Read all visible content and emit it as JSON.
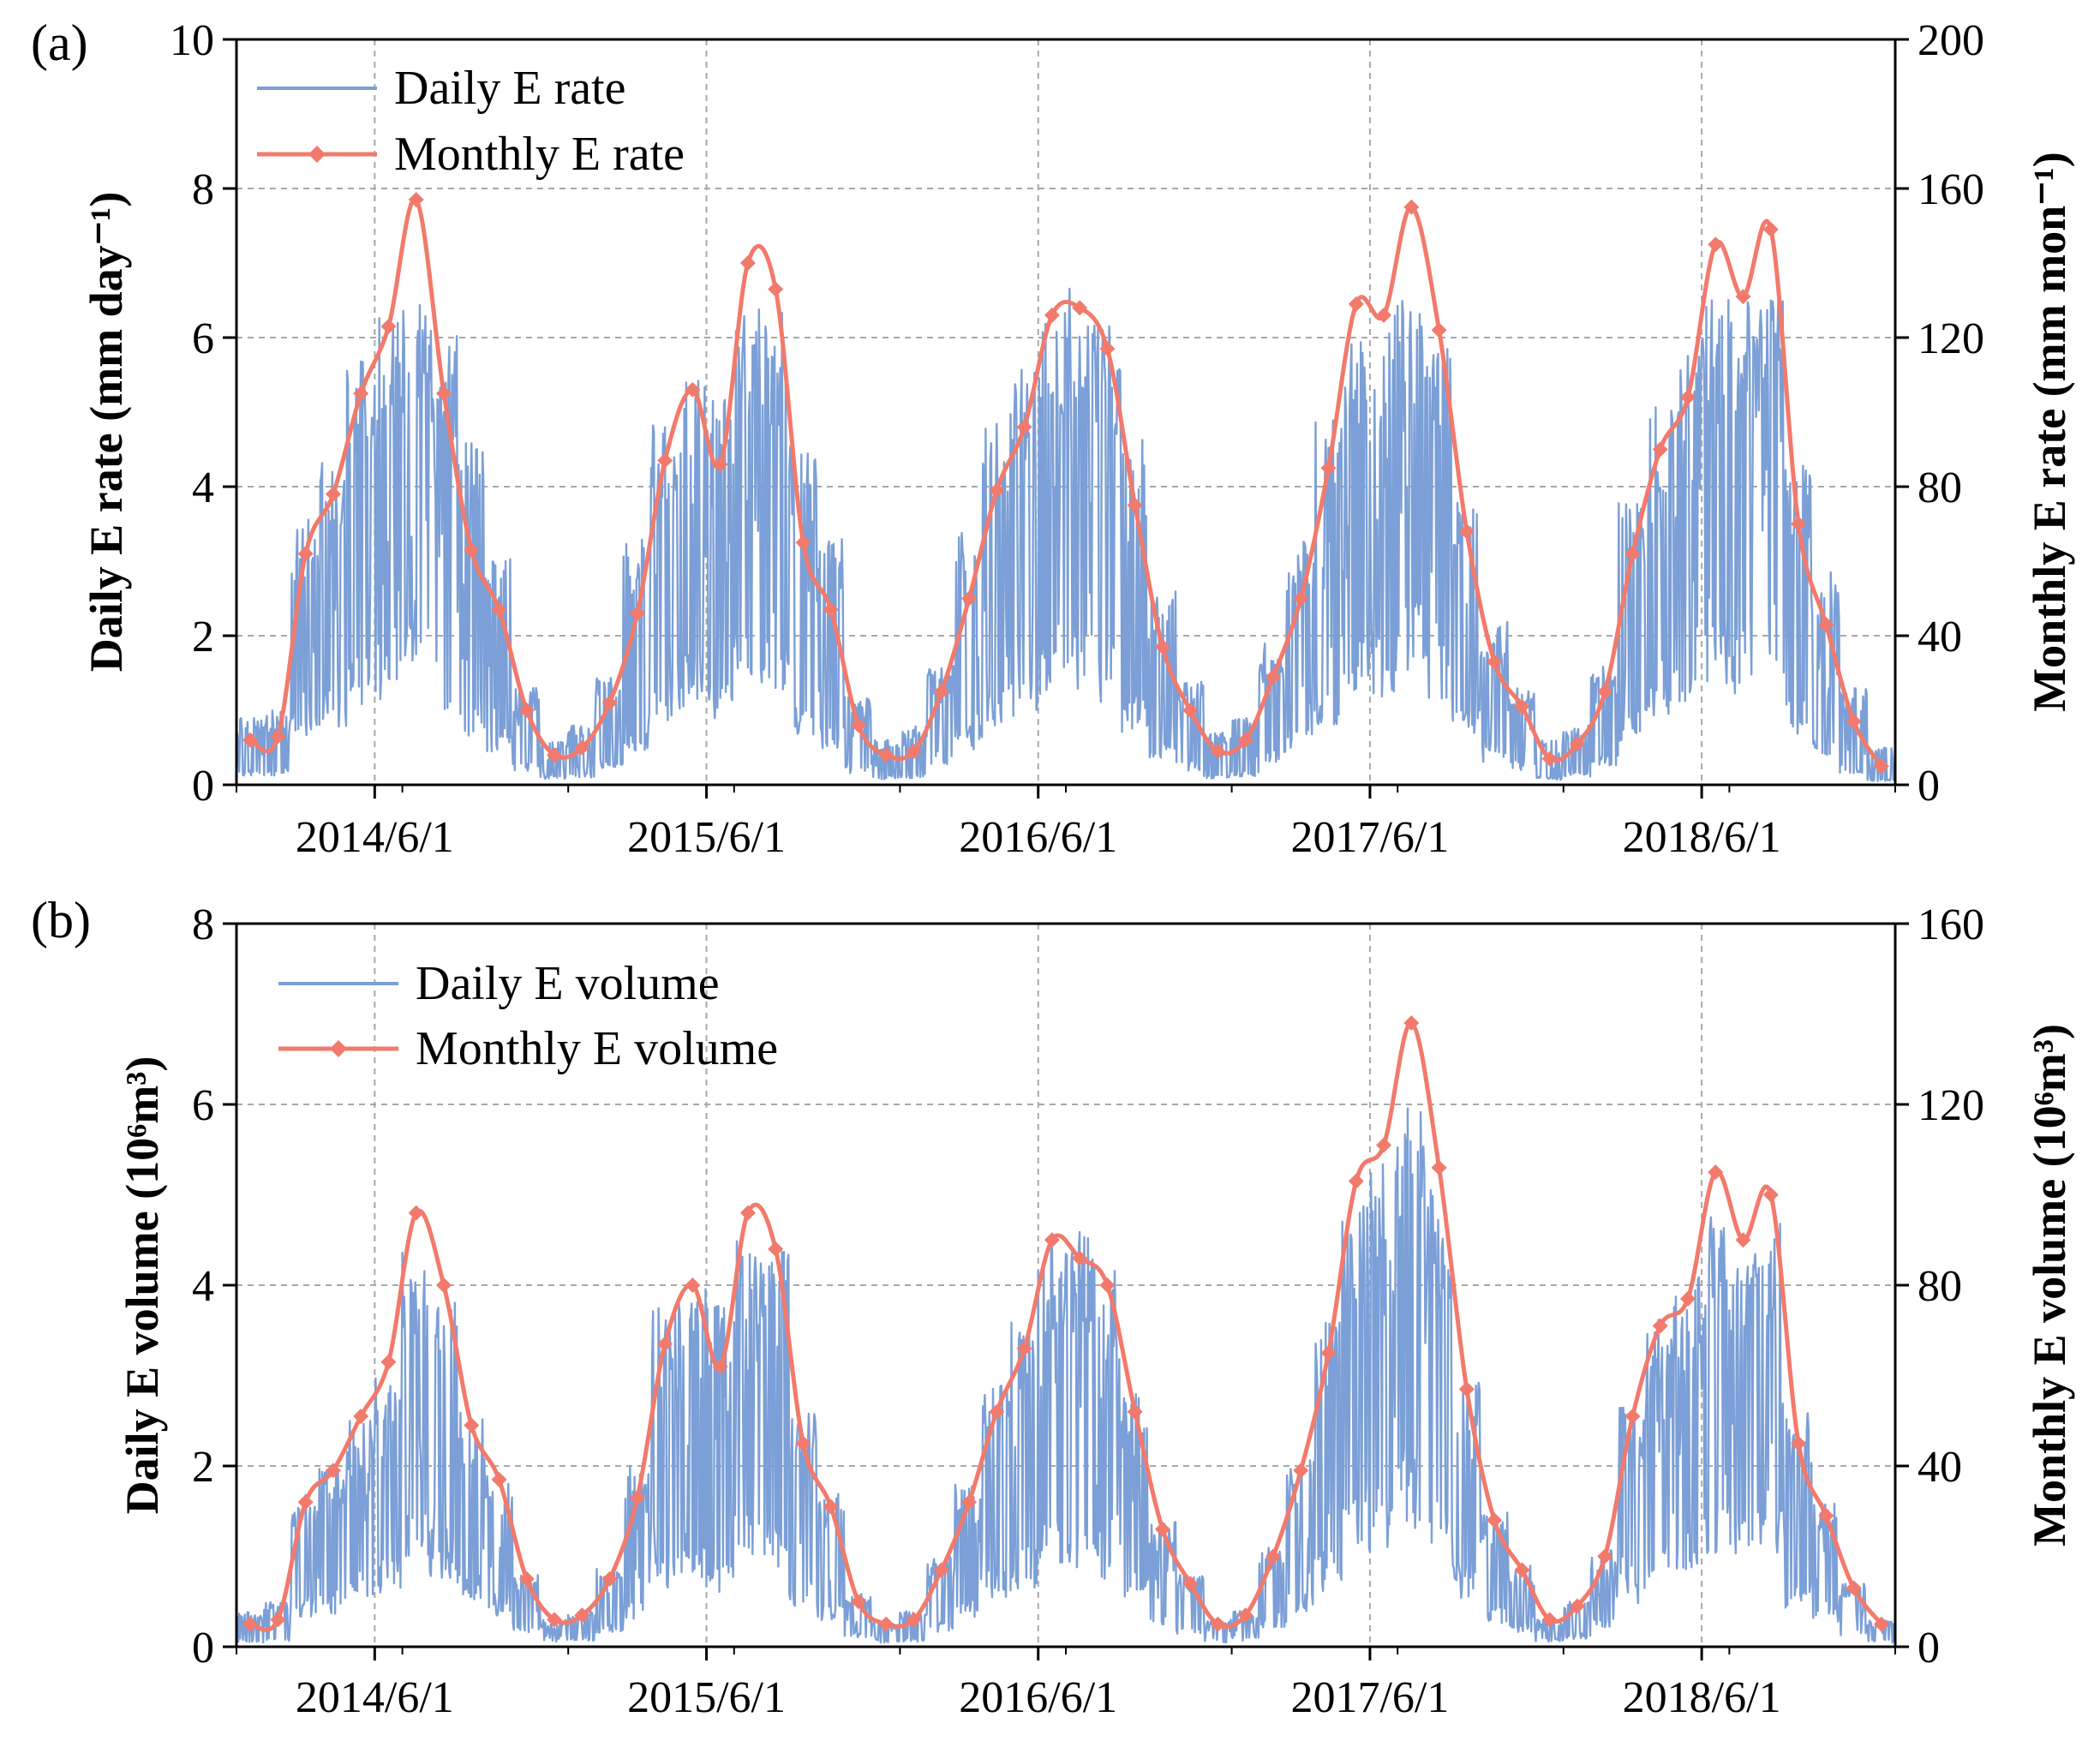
{
  "colors": {
    "daily": "#7b9fd6",
    "monthly": "#f27a6c",
    "grid": "#a8a8a8",
    "axis": "#000000"
  },
  "chart_data": [
    {
      "panel_label": "(a)",
      "type": "line",
      "x_tick_labels": [
        "2014/6/1",
        "2015/6/1",
        "2016/6/1",
        "2017/6/1",
        "2018/6/1"
      ],
      "x_tick_months": [
        5,
        17,
        29,
        41,
        53
      ],
      "x_range_months": [
        0,
        60
      ],
      "ylabel_left": "Daily E rate (mm day⁻¹)",
      "ylabel_right": "Monthly E rate (mm mon⁻¹)",
      "ylim_left": [
        0,
        10
      ],
      "ylim_right": [
        0,
        200
      ],
      "yticks_left": [
        "0",
        "2",
        "4",
        "6",
        "8",
        "10"
      ],
      "yticks_right": [
        "0",
        "40",
        "80",
        "120",
        "160",
        "200"
      ],
      "legend": [
        "Daily E rate",
        "Monthly E rate"
      ],
      "legend_position": "top-left",
      "series": [
        {
          "name": "Monthly E rate",
          "axis": "right",
          "unit": "mm mon-1",
          "values": [
            12,
            13,
            62,
            78,
            105,
            123,
            157,
            105,
            63,
            47,
            20,
            8,
            10,
            22,
            46,
            87,
            106,
            86,
            140,
            133,
            65,
            47,
            16,
            8,
            9,
            25,
            50,
            79,
            96,
            126,
            128,
            117,
            75,
            37,
            20,
            9,
            12,
            29,
            50,
            85,
            129,
            126,
            155,
            122,
            68,
            33,
            21,
            7,
            11,
            25,
            62,
            90,
            104,
            145,
            131,
            149,
            70,
            43,
            17,
            5
          ]
        },
        {
          "name": "Daily E rate",
          "axis": "left",
          "unit": "mm day-1",
          "note": "daily series oscillates around the monthly mean (monthly/30)",
          "month_max": [
            0.9,
            1.0,
            3.6,
            4.4,
            5.8,
            6.3,
            6.5,
            6.1,
            4.6,
            3.1,
            1.3,
            0.6,
            0.8,
            1.5,
            3.3,
            5.0,
            5.6,
            5.3,
            6.4,
            6.4,
            4.6,
            3.3,
            1.2,
            0.6,
            0.8,
            1.6,
            3.4,
            4.9,
            5.6,
            6.5,
            6.7,
            6.2,
            4.8,
            2.6,
            1.4,
            0.7,
            0.9,
            1.9,
            3.3,
            5.1,
            6.0,
            6.3,
            6.7,
            5.9,
            4.0,
            2.2,
            1.3,
            0.6,
            0.8,
            1.6,
            3.9,
            5.2,
            5.9,
            6.6,
            6.5,
            6.6,
            4.3,
            2.9,
            1.3,
            0.5
          ]
        }
      ]
    },
    {
      "panel_label": "(b)",
      "type": "line",
      "x_tick_labels": [
        "2014/6/1",
        "2015/6/1",
        "2016/6/1",
        "2017/6/1",
        "2018/6/1"
      ],
      "x_tick_months": [
        5,
        17,
        29,
        41,
        53
      ],
      "x_range_months": [
        0,
        60
      ],
      "ylabel_left": "Daily E volume (10⁶m³)",
      "ylabel_right": "Monthly E volume (10⁶m³)",
      "ylim_left": [
        0,
        8
      ],
      "ylim_right": [
        0,
        160
      ],
      "yticks_left": [
        "0",
        "2",
        "4",
        "6",
        "8"
      ],
      "yticks_right": [
        "0",
        "40",
        "80",
        "120",
        "160"
      ],
      "legend": [
        "Daily E volume",
        "Monthly E volume"
      ],
      "legend_position": "top-left",
      "series": [
        {
          "name": "Monthly E volume",
          "axis": "right",
          "unit": "10^6 m3",
          "values": [
            5,
            6,
            32,
            39,
            51,
            63,
            96,
            80,
            49,
            37,
            15,
            6,
            7,
            15,
            33,
            67,
            80,
            62,
            96,
            88,
            45,
            31,
            10,
            5,
            6,
            17,
            32,
            52,
            66,
            90,
            86,
            80,
            52,
            26,
            14,
            5,
            7,
            20,
            39,
            65,
            103,
            111,
            138,
            106,
            57,
            28,
            17,
            6,
            9,
            20,
            51,
            71,
            77,
            105,
            90,
            100,
            45,
            29,
            13,
            5
          ]
        },
        {
          "name": "Daily E volume",
          "axis": "left",
          "unit": "10^6 m3",
          "note": "daily series oscillates around the monthly mean (monthly/30)",
          "month_max": [
            0.4,
            0.5,
            1.7,
            2.0,
            2.5,
            3.0,
            4.4,
            3.9,
            2.6,
            1.9,
            0.8,
            0.3,
            0.4,
            0.9,
            2.0,
            3.8,
            4.0,
            3.8,
            4.6,
            4.4,
            2.6,
            1.7,
            0.6,
            0.3,
            0.4,
            1.0,
            1.8,
            2.9,
            3.8,
            4.5,
            4.6,
            4.2,
            2.8,
            1.4,
            0.8,
            0.3,
            0.4,
            1.1,
            2.1,
            3.6,
            5.0,
            5.4,
            6.0,
            5.2,
            3.0,
            1.5,
            0.9,
            0.3,
            0.5,
            1.1,
            2.7,
            3.7,
            4.2,
            4.8,
            4.4,
            4.7,
            2.6,
            1.6,
            0.7,
            0.3
          ]
        }
      ]
    }
  ]
}
